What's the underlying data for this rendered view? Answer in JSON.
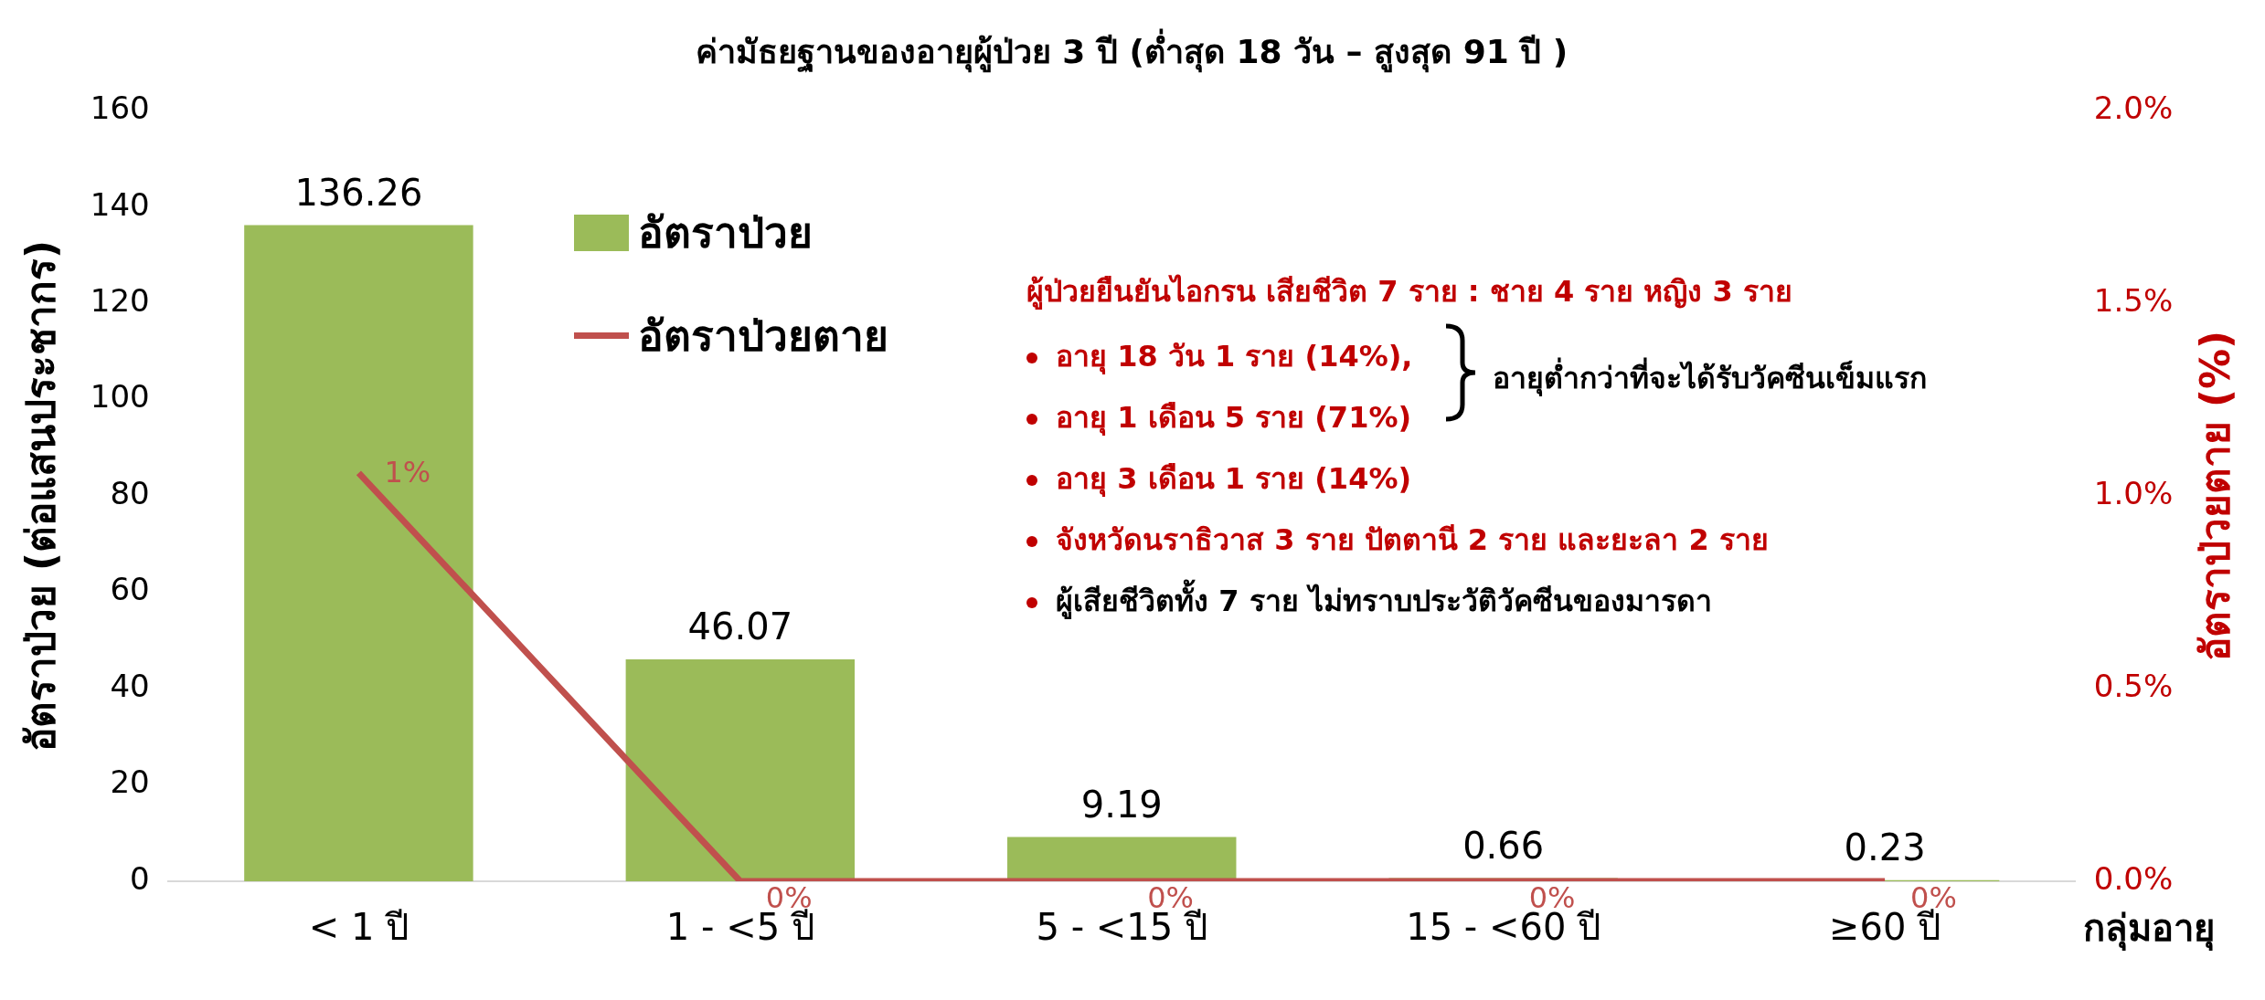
{
  "chart_data": {
    "type": "bar",
    "title": "ค่ามัธยฐานของอายุผู้ป่วย 3 ปี (ต่ำสุด 18 วัน – สูงสุด 91 ปี )",
    "xlabel": "กลุ่มอายุ",
    "ylabel": "อัตราป่วย (ต่อแสนประชากร)",
    "y2label": "อัตราป่วยตาย (%)",
    "categories": [
      "< 1 ปี",
      "1 - <5 ปี",
      "5 - <15 ปี",
      "15 - <60 ปี",
      "≥60 ปี"
    ],
    "series": [
      {
        "name": "อัตราป่วย",
        "color": "#9bbb59",
        "values": [
          136.26,
          46.07,
          9.19,
          0.66,
          0.23
        ],
        "value_labels": [
          "136.26",
          "46.07",
          "9.19",
          "0.66",
          "0.23"
        ]
      },
      {
        "name": "อัตราป่วยตาย",
        "type": "line",
        "axis": "y2",
        "color": "#c0504d",
        "values": [
          1.06,
          0,
          0,
          0,
          0
        ],
        "value_labels": [
          "1%",
          "0%",
          "0%",
          "0%",
          "0%"
        ]
      }
    ],
    "ylim": [
      0,
      160
    ],
    "yticks": [
      0,
      20,
      40,
      60,
      80,
      100,
      120,
      140,
      160
    ],
    "y2lim": [
      0,
      2
    ],
    "y2ticks": [
      {
        "value": 0,
        "label": "0.0%"
      },
      {
        "value": 0.5,
        "label": "0.5%"
      },
      {
        "value": 1,
        "label": "1.0%"
      },
      {
        "value": 1.5,
        "label": "1.5%"
      },
      {
        "value": 2,
        "label": "2.0%"
      }
    ],
    "grid": false,
    "legend": "top left",
    "marker": "none",
    "line_style": "solid",
    "annotations": [
      "ผู้ป่วยยืนยันไอกรน เสียชีวิต 7 ราย : ชาย 4 ราย หญิง 3 ราย",
      "อายุ 18 วัน 1 ราย (14%),",
      "อายุ 1 เดือน 5 ราย (71%)",
      "อายุ 3 เดือน 1 ราย (14%)",
      "จังหวัดนราธิวาส 3 ราย ปัตตานี 2 ราย และยะลา 2 ราย",
      "ผู้เสียชีวิตทั้ง 7 ราย ไม่ทราบประวัติวัคซีนของมารดา",
      "อายุต่ำกว่าที่จะได้รับวัคซีนเข็มแรก"
    ]
  }
}
